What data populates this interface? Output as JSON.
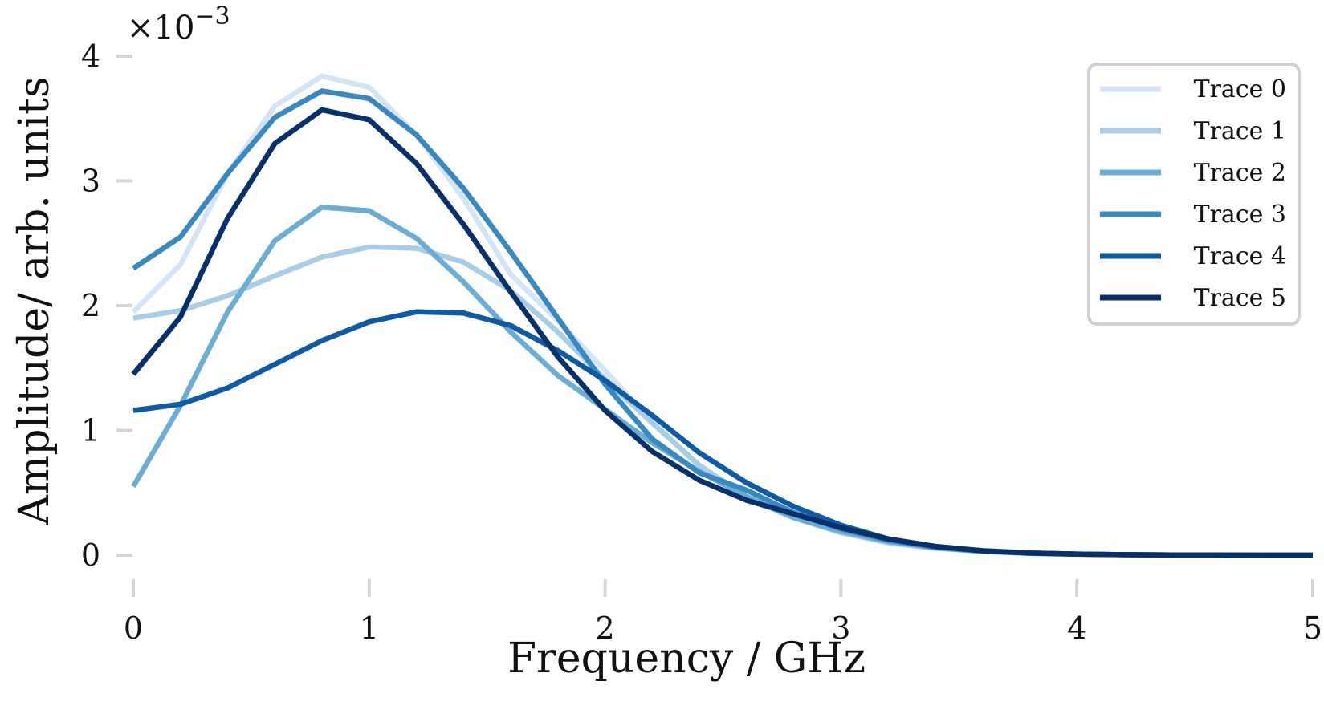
{
  "chart_data": {
    "type": "line",
    "xlabel": "Frequency / GHz",
    "ylabel": "Amplitude/ arb. units",
    "y_multiplier_label": "×10",
    "y_multiplier_exponent": "−3",
    "xlim": [
      0,
      5
    ],
    "ylim": [
      0,
      4
    ],
    "xticks": [
      "0",
      "1",
      "2",
      "3",
      "4",
      "5"
    ],
    "yticks": [
      "0",
      "1",
      "2",
      "3",
      "4"
    ],
    "grid": false,
    "legend_position": "top-right",
    "x": [
      0,
      0.2,
      0.4,
      0.6,
      0.8,
      1.0,
      1.2,
      1.4,
      1.6,
      1.8,
      2.0,
      2.2,
      2.4,
      2.6,
      2.8,
      3.0,
      3.2,
      3.4,
      3.6,
      3.8,
      4.0,
      4.2,
      4.4,
      4.6,
      4.8,
      5.0
    ],
    "series": [
      {
        "name": "Trace 0",
        "color": "#d4e4f4",
        "values": [
          1.95,
          2.33,
          3.06,
          3.6,
          3.84,
          3.75,
          3.37,
          2.86,
          2.25,
          1.88,
          1.48,
          1.07,
          0.71,
          0.45,
          0.3,
          0.18,
          0.1,
          0.055,
          0.03,
          0.015,
          0.008,
          0.004,
          0.002,
          0.001,
          0.0,
          0.0
        ]
      },
      {
        "name": "Trace 1",
        "color": "#a9cde6",
        "values": [
          1.9,
          1.96,
          2.08,
          2.24,
          2.39,
          2.47,
          2.46,
          2.35,
          2.12,
          1.79,
          1.41,
          1.06,
          0.72,
          0.47,
          0.3,
          0.18,
          0.1,
          0.055,
          0.03,
          0.015,
          0.008,
          0.004,
          0.002,
          0.001,
          0.0,
          0.0
        ]
      },
      {
        "name": "Trace 2",
        "color": "#6aaed6",
        "values": [
          0.55,
          1.2,
          1.95,
          2.52,
          2.79,
          2.76,
          2.54,
          2.19,
          1.79,
          1.44,
          1.17,
          0.9,
          0.67,
          0.47,
          0.3,
          0.19,
          0.11,
          0.06,
          0.03,
          0.015,
          0.008,
          0.004,
          0.002,
          0.001,
          0.0,
          0.0
        ]
      },
      {
        "name": "Trace 3",
        "color": "#3888c2",
        "values": [
          2.3,
          2.55,
          3.06,
          3.51,
          3.72,
          3.66,
          3.37,
          2.94,
          2.43,
          1.9,
          1.37,
          0.93,
          0.66,
          0.52,
          0.34,
          0.21,
          0.12,
          0.065,
          0.035,
          0.017,
          0.009,
          0.004,
          0.002,
          0.001,
          0.0,
          0.0
        ]
      },
      {
        "name": "Trace 4",
        "color": "#0e5aa7",
        "values": [
          1.16,
          1.21,
          1.34,
          1.53,
          1.72,
          1.87,
          1.95,
          1.94,
          1.84,
          1.64,
          1.4,
          1.12,
          0.82,
          0.58,
          0.39,
          0.24,
          0.13,
          0.07,
          0.036,
          0.018,
          0.009,
          0.004,
          0.002,
          0.001,
          0.0,
          0.0
        ]
      },
      {
        "name": "Trace 5",
        "color": "#08306b",
        "values": [
          1.45,
          1.91,
          2.7,
          3.3,
          3.57,
          3.49,
          3.14,
          2.65,
          2.11,
          1.59,
          1.16,
          0.83,
          0.6,
          0.44,
          0.33,
          0.22,
          0.13,
          0.07,
          0.035,
          0.017,
          0.008,
          0.004,
          0.002,
          0.001,
          0.0,
          0.0
        ]
      }
    ]
  }
}
